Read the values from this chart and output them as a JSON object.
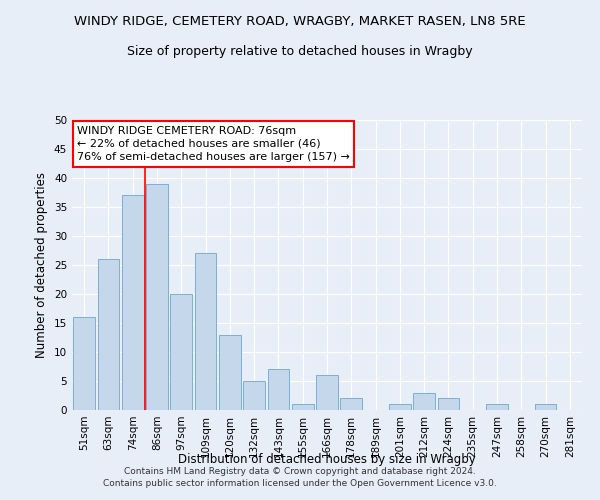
{
  "title": "WINDY RIDGE, CEMETERY ROAD, WRAGBY, MARKET RASEN, LN8 5RE",
  "subtitle": "Size of property relative to detached houses in Wragby",
  "xlabel": "Distribution of detached houses by size in Wragby",
  "ylabel": "Number of detached properties",
  "categories": [
    "51sqm",
    "63sqm",
    "74sqm",
    "86sqm",
    "97sqm",
    "109sqm",
    "120sqm",
    "132sqm",
    "143sqm",
    "155sqm",
    "166sqm",
    "178sqm",
    "189sqm",
    "201sqm",
    "212sqm",
    "224sqm",
    "235sqm",
    "247sqm",
    "258sqm",
    "270sqm",
    "281sqm"
  ],
  "values": [
    16,
    26,
    37,
    39,
    20,
    27,
    13,
    5,
    7,
    1,
    6,
    2,
    0,
    1,
    3,
    2,
    0,
    1,
    0,
    1,
    0
  ],
  "bar_color": "#c5d8eb",
  "bar_edge_color": "#7bafd4",
  "ylim": [
    0,
    50
  ],
  "yticks": [
    0,
    5,
    10,
    15,
    20,
    25,
    30,
    35,
    40,
    45,
    50
  ],
  "red_line_x": 2.5,
  "annotation_line1": "WINDY RIDGE CEMETERY ROAD: 76sqm",
  "annotation_line2": "← 22% of detached houses are smaller (46)",
  "annotation_line3": "76% of semi-detached houses are larger (157) →",
  "footer_line1": "Contains HM Land Registry data © Crown copyright and database right 2024.",
  "footer_line2": "Contains public sector information licensed under the Open Government Licence v3.0.",
  "background_color": "#e8eef7",
  "grid_color": "#ffffff",
  "title_fontsize": 9.5,
  "subtitle_fontsize": 9,
  "axis_label_fontsize": 8.5,
  "tick_fontsize": 7.5,
  "annotation_fontsize": 8,
  "footer_fontsize": 6.5
}
